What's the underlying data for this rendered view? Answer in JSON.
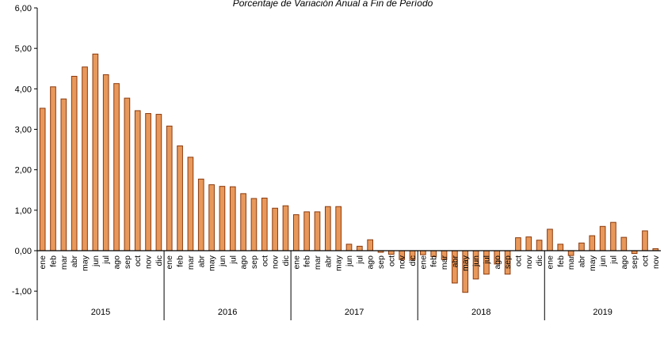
{
  "chart_data": {
    "type": "bar",
    "title": "Porcentaje de Variación Anual a Fin de Período",
    "xlabel": "",
    "ylabel": "",
    "ylim": [
      -1.0,
      6.0
    ],
    "yticks": [
      "-1,00",
      "0,00",
      "1,00",
      "2,00",
      "3,00",
      "4,00",
      "5,00",
      "6,00"
    ],
    "grid": false,
    "legend": "none",
    "bar_color": "#E8985A",
    "bar_edge_color": "#8B3A0E",
    "years": [
      {
        "label": "2015",
        "months": 12
      },
      {
        "label": "2016",
        "months": 12
      },
      {
        "label": "2017",
        "months": 12
      },
      {
        "label": "2018",
        "months": 12
      },
      {
        "label": "2019",
        "months": 11
      }
    ],
    "categories": [
      "ene",
      "feb",
      "mar",
      "abr",
      "may",
      "jun",
      "jul",
      "ago",
      "sep",
      "oct",
      "nov",
      "dic",
      "ene",
      "feb",
      "mar",
      "abr",
      "may",
      "jun",
      "jul",
      "ago",
      "sep",
      "oct",
      "nov",
      "dic",
      "ene",
      "feb",
      "mar",
      "abr",
      "may",
      "jun",
      "jul",
      "ago",
      "sep",
      "oct",
      "nov",
      "dic",
      "ene",
      "feb",
      "mar",
      "abr",
      "may",
      "jun",
      "jul",
      "ago",
      "sep",
      "oct",
      "nov",
      "dic",
      "ene",
      "feb",
      "mar",
      "abr",
      "may",
      "jun",
      "jul",
      "ago",
      "sep",
      "oct",
      "nov"
    ],
    "values": [
      3.52,
      4.05,
      3.75,
      4.31,
      4.54,
      4.86,
      4.35,
      4.13,
      3.77,
      3.46,
      3.39,
      3.37,
      3.08,
      2.59,
      2.31,
      1.77,
      1.63,
      1.59,
      1.58,
      1.41,
      1.29,
      1.3,
      1.05,
      1.11,
      0.89,
      0.96,
      0.96,
      1.09,
      1.09,
      0.16,
      0.11,
      0.27,
      -0.04,
      -0.09,
      -0.22,
      -0.22,
      -0.1,
      -0.15,
      -0.22,
      -0.8,
      -1.03,
      -0.7,
      -0.58,
      -0.33,
      -0.58,
      0.32,
      0.34,
      0.26,
      0.53,
      0.16,
      -0.12,
      0.19,
      0.37,
      0.6,
      0.7,
      0.33,
      -0.07,
      0.49,
      0.05
    ]
  }
}
